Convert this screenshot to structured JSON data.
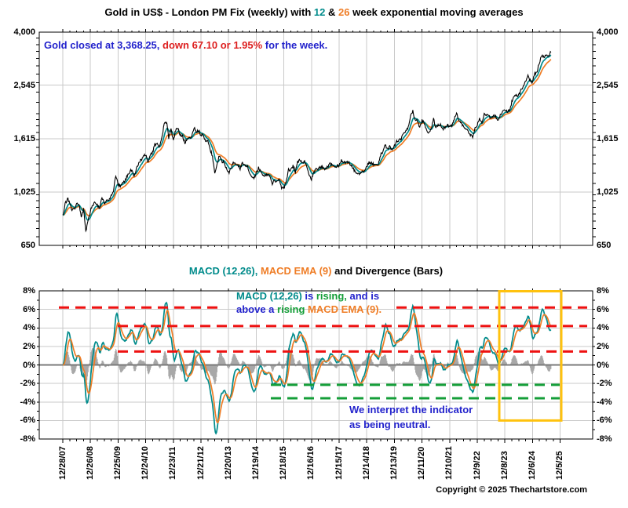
{
  "title": {
    "parts": [
      {
        "text": "Gold in US$ - London PM Fix (weekly) with ",
        "color": "black"
      },
      {
        "text": "12",
        "color": "teal"
      },
      {
        "text": " & ",
        "color": "black"
      },
      {
        "text": "26",
        "color": "orange"
      },
      {
        "text": " week exponential moving averages",
        "color": "black"
      }
    ]
  },
  "colors": {
    "teal_ema12": "#008b8b",
    "orange_ema26": "#ef7d26",
    "annotation_blue": "#2222cc",
    "annotation_red": "#dd2020",
    "dashed_red": "#ee1111",
    "dashed_green": "#149e38",
    "highlight_yellow": "#ffc20e",
    "divergence_gray": "#a8a8a8",
    "zero_line_gray": "#7a7a7a",
    "grid_gray": "#c9c9c9",
    "price_black": "#000000"
  },
  "price_chart": {
    "note_parts": [
      {
        "text": "Gold closed at 3,368.25,",
        "color": "blue"
      },
      {
        "text": " down 67.10 or 1.95%",
        "color": "red"
      },
      {
        "text": " for the week.",
        "color": "blue"
      }
    ],
    "y_tick_labels": [
      "4,000",
      "2,545",
      "1,615",
      "1,025",
      "650"
    ],
    "y_tick_values": [
      4000,
      2545,
      1615,
      1025,
      650
    ]
  },
  "macd_chart": {
    "title_parts": [
      {
        "text": "MACD (12,26),",
        "color": "teal"
      },
      {
        "text": " MACD EMA (9)",
        "color": "orange"
      },
      {
        "text": " and Divergence (Bars)",
        "color": "black"
      }
    ],
    "note1_line1": [
      {
        "text": "MACD (12,26)",
        "color": "teal"
      },
      {
        "text": " is ",
        "color": "blue"
      },
      {
        "text": "rising,",
        "color": "green"
      },
      {
        "text": " and is",
        "color": "blue"
      }
    ],
    "note1_line2": [
      {
        "text": "above a ",
        "color": "blue"
      },
      {
        "text": "rising ",
        "color": "green"
      },
      {
        "text": "MACD EMA (9).",
        "color": "orange"
      }
    ],
    "note2_line1": "We interpret the indicator",
    "note2_line2": "as being neutral.",
    "y_tick_labels": [
      "8%",
      "6%",
      "4%",
      "2%",
      "0%",
      "-2%",
      "-4%",
      "-6%",
      "-8%"
    ]
  },
  "x_axis": {
    "labels": [
      "12/28/07",
      "12/26/08",
      "12/25/09",
      "12/24/10",
      "12/23/11",
      "12/21/12",
      "12/20/13",
      "12/19/14",
      "12/18/15",
      "12/16/16",
      "12/15/17",
      "12/14/18",
      "12/13/19",
      "12/11/20",
      "12/10/21",
      "12/9/22",
      "12/8/23",
      "12/6/24",
      "12/5/25"
    ]
  },
  "footer": {
    "copyright": "Copyright © 2025 Thechartstore.com"
  },
  "chart_data": [
    {
      "type": "line",
      "title": "Gold in US$ - London PM Fix (weekly) with 12 & 26 week exponential moving averages",
      "y_scale": "log",
      "ylim": [
        650,
        4000
      ],
      "y_tick_values": [
        4000,
        2545,
        1615,
        1025,
        650
      ],
      "x_tick_labels": [
        "12/28/07",
        "12/26/08",
        "12/25/09",
        "12/24/10",
        "12/23/11",
        "12/21/12",
        "12/20/13",
        "12/19/14",
        "12/18/15",
        "12/16/16",
        "12/15/17",
        "12/14/18",
        "12/13/19",
        "12/11/20",
        "12/10/21",
        "12/9/22",
        "12/8/23",
        "12/6/24",
        "12/5/25"
      ],
      "x_start_label": "12/28/07",
      "x_sampling": "monthly samples of the weekly PM fix, Dec-2007 through Aug-2025",
      "series": [
        {
          "name": "Gold London PM Fix (weekly)",
          "values": [
            833,
            923,
            971,
            934,
            871,
            886,
            930,
            918,
            833,
            885,
            731,
            815,
            870,
            920,
            940,
            917,
            883,
            976,
            934,
            954,
            953,
            996,
            1040,
            1176,
            1088,
            1078,
            1108,
            1116,
            1179,
            1215,
            1244,
            1169,
            1247,
            1307,
            1346,
            1384,
            1406,
            1327,
            1411,
            1439,
            1536,
            1537,
            1506,
            1629,
            1813,
            1875,
            1620,
            1746,
            1575,
            1744,
            1770,
            1663,
            1651,
            1558,
            1598,
            1622,
            1648,
            1776,
            1719,
            1726,
            1658,
            1665,
            1588,
            1598,
            1469,
            1394,
            1192,
            1314,
            1395,
            1327,
            1324,
            1253,
            1205,
            1244,
            1326,
            1291,
            1288,
            1250,
            1315,
            1285,
            1285,
            1216,
            1164,
            1145,
            1199,
            1260,
            1214,
            1187,
            1180,
            1191,
            1171,
            1098,
            1135,
            1114,
            1142,
            1061,
            1060,
            1111,
            1234,
            1237,
            1285,
            1212,
            1320,
            1342,
            1309,
            1322,
            1272,
            1178,
            1146,
            1210,
            1255,
            1244,
            1266,
            1266,
            1242,
            1267,
            1311,
            1280,
            1271,
            1275,
            1291,
            1345,
            1318,
            1323,
            1315,
            1300,
            1250,
            1224,
            1202,
            1187,
            1215,
            1220,
            1279,
            1321,
            1313,
            1292,
            1282,
            1305,
            1409,
            1428,
            1528,
            1472,
            1511,
            1464,
            1515,
            1584,
            1585,
            1608,
            1686,
            1730,
            1768,
            1960,
            2035,
            1886,
            1878,
            1780,
            1888,
            1848,
            1734,
            1692,
            1768,
            1900,
            1771,
            1814,
            1815,
            1757,
            1777,
            1805,
            1806,
            1797,
            1909,
            1990,
            1897,
            1838,
            1807,
            1766,
            1711,
            1661,
            1641,
            1769,
            1813,
            1928,
            1825,
            1980,
            1990,
            1963,
            1912,
            1965,
            1940,
            1871,
            1983,
            2036,
            2063,
            2039,
            2044,
            2214,
            2307,
            2327,
            2331,
            2447,
            2503,
            2630,
            2744,
            2657,
            2610,
            2812,
            2858,
            3089,
            3260,
            3240,
            3300,
            3290,
            3368
          ]
        },
        {
          "name": "12-week EMA",
          "derived": "EMA(12 weeks) of gold series"
        },
        {
          "name": "26-week EMA",
          "derived": "EMA(26 weeks) of gold series"
        }
      ],
      "last_close": 3368.25,
      "weekly_change": -67.1,
      "weekly_change_pct": -1.95
    },
    {
      "type": "line+bars",
      "title": "MACD (12,26), MACD EMA (9) and Divergence (Bars)",
      "ylim": [
        -8,
        8
      ],
      "y_unit": "%",
      "y_tick_values_pct": [
        8,
        6,
        4,
        2,
        0,
        -2,
        -4,
        -6,
        -8
      ],
      "series": [
        {
          "name": "MACD (12,26)",
          "derived": "(EMA12w - EMA26w) / EMA26w * 100 of gold series"
        },
        {
          "name": "MACD EMA (9)",
          "derived": "EMA(9 weeks) of MACD"
        },
        {
          "name": "Divergence (Bars)",
          "derived": "MACD - MACD EMA(9)"
        }
      ],
      "red_dashed_levels_pct": [
        6.2,
        4.2,
        1.45
      ],
      "green_dashed_levels_pct": [
        -2.15,
        -3.6
      ],
      "highlight_box": {
        "x_from_label": "12/8/23",
        "x_to_label": "12/5/25",
        "y_top_pct": 8,
        "y_bottom_pct": -6
      },
      "last_values_pct": {
        "macd": 4.9,
        "macd_ema": 4.6
      }
    }
  ]
}
